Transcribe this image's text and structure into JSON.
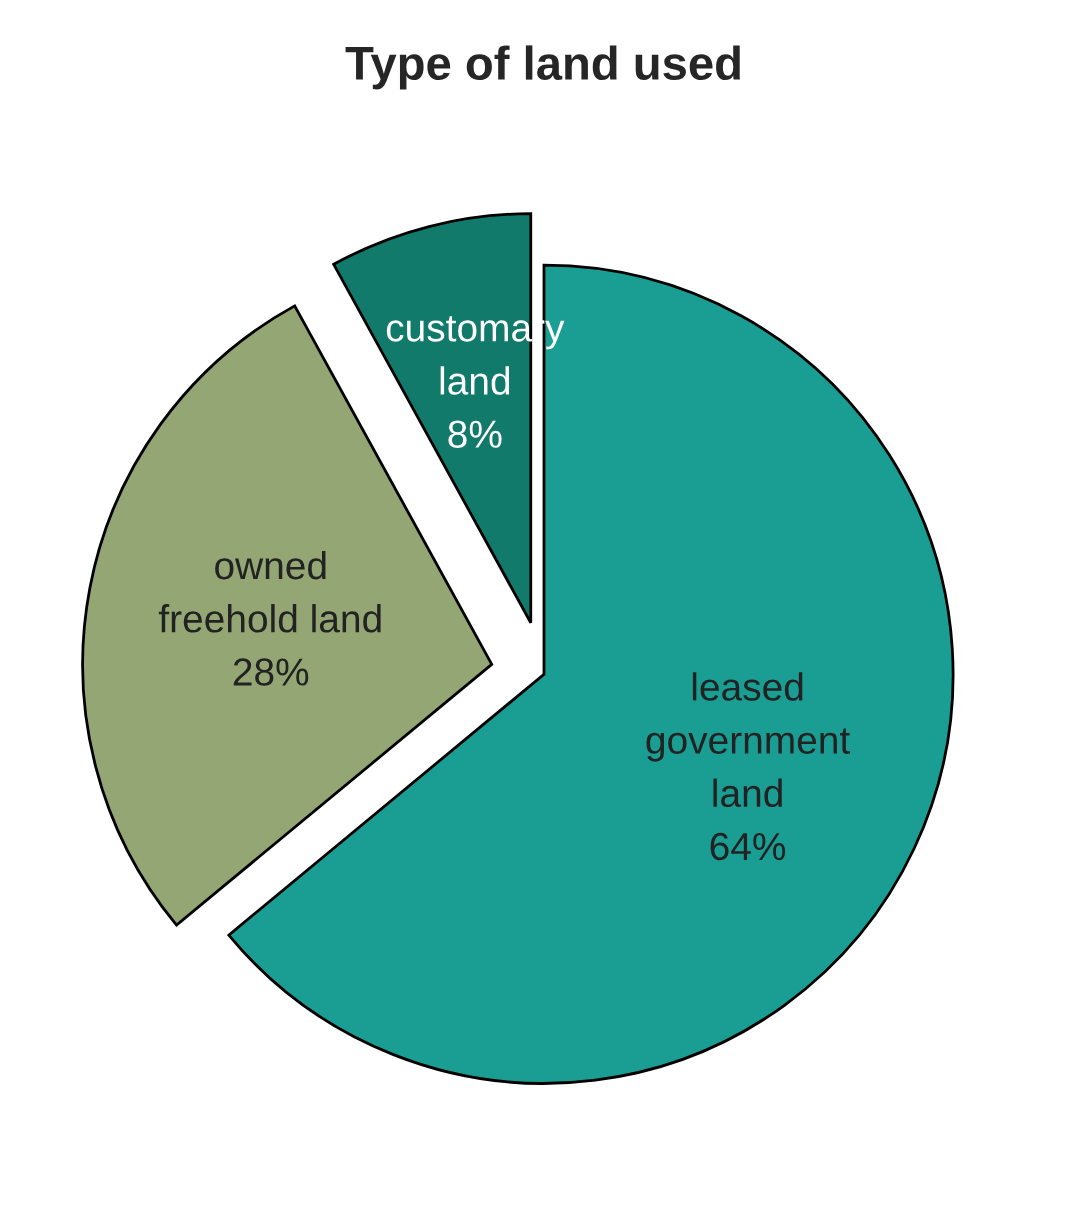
{
  "chart_data": {
    "type": "pie",
    "title": "Type of land used",
    "categories": [
      "leased\ngovernment\nland",
      "owned\nfreehold land",
      "customary\nland"
    ],
    "values": [
      64,
      28,
      8
    ],
    "value_labels": [
      "64%",
      "28%",
      "8%"
    ],
    "colors": [
      "#1a9e94",
      "#93a673",
      "#117a6b"
    ]
  }
}
